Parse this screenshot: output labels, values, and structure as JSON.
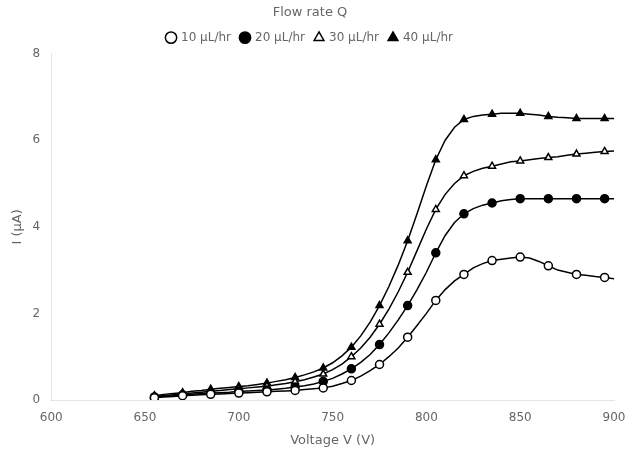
{
  "chart_data": {
    "type": "line",
    "xlabel": "Voltage V (V)",
    "ylabel": "I (μA)",
    "legend_title": "Flow rate Q",
    "xlim": [
      600,
      900
    ],
    "ylim": [
      0,
      8
    ],
    "xticks": [
      600,
      650,
      700,
      750,
      800,
      850,
      900
    ],
    "yticks": [
      0,
      2,
      4,
      6,
      8
    ],
    "grid": false,
    "legend": "top",
    "x": [
      655,
      660,
      665,
      670,
      675,
      680,
      685,
      690,
      695,
      700,
      705,
      710,
      715,
      720,
      725,
      730,
      735,
      740,
      745,
      750,
      755,
      760,
      765,
      770,
      775,
      780,
      785,
      790,
      795,
      800,
      805,
      810,
      815,
      820,
      825,
      830,
      835,
      840,
      845,
      850,
      855,
      860,
      865,
      870,
      875,
      880,
      885,
      890,
      895,
      900
    ],
    "series": [
      {
        "name": "10 μL/hr",
        "color": "#000000",
        "marker": "open-circle",
        "values": [
          0.05,
          0.07,
          0.08,
          0.1,
          0.11,
          0.12,
          0.13,
          0.14,
          0.15,
          0.16,
          0.17,
          0.18,
          0.19,
          0.2,
          0.21,
          0.22,
          0.24,
          0.26,
          0.28,
          0.32,
          0.38,
          0.45,
          0.55,
          0.68,
          0.82,
          1.0,
          1.2,
          1.45,
          1.72,
          2.0,
          2.3,
          2.55,
          2.75,
          2.9,
          3.05,
          3.15,
          3.22,
          3.25,
          3.28,
          3.3,
          3.28,
          3.2,
          3.1,
          3.0,
          2.95,
          2.9,
          2.88,
          2.85,
          2.83,
          2.8
        ]
      },
      {
        "name": "20 μL/hr",
        "color": "#000000",
        "marker": "circle",
        "values": [
          0.07,
          0.09,
          0.1,
          0.12,
          0.13,
          0.15,
          0.16,
          0.17,
          0.18,
          0.2,
          0.21,
          0.22,
          0.23,
          0.25,
          0.27,
          0.3,
          0.33,
          0.37,
          0.43,
          0.5,
          0.6,
          0.72,
          0.87,
          1.05,
          1.28,
          1.55,
          1.85,
          2.18,
          2.55,
          2.95,
          3.4,
          3.8,
          4.1,
          4.3,
          4.42,
          4.5,
          4.55,
          4.6,
          4.63,
          4.65,
          4.65,
          4.65,
          4.65,
          4.65,
          4.65,
          4.65,
          4.65,
          4.65,
          4.65,
          4.65
        ]
      },
      {
        "name": "30 μL/hr",
        "color": "#000000",
        "marker": "open-triangle",
        "values": [
          0.08,
          0.1,
          0.12,
          0.14,
          0.16,
          0.18,
          0.2,
          0.22,
          0.24,
          0.26,
          0.28,
          0.3,
          0.32,
          0.35,
          0.38,
          0.42,
          0.47,
          0.53,
          0.6,
          0.7,
          0.83,
          1.0,
          1.2,
          1.45,
          1.75,
          2.1,
          2.5,
          2.95,
          3.45,
          3.95,
          4.4,
          4.75,
          5.0,
          5.18,
          5.28,
          5.35,
          5.4,
          5.45,
          5.5,
          5.52,
          5.55,
          5.58,
          5.6,
          5.62,
          5.65,
          5.68,
          5.7,
          5.72,
          5.74,
          5.75
        ]
      },
      {
        "name": "40 μL/hr",
        "color": "#000000",
        "marker": "triangle",
        "values": [
          0.1,
          0.13,
          0.15,
          0.17,
          0.2,
          0.22,
          0.25,
          0.27,
          0.29,
          0.31,
          0.33,
          0.36,
          0.39,
          0.43,
          0.47,
          0.52,
          0.58,
          0.65,
          0.74,
          0.86,
          1.02,
          1.22,
          1.48,
          1.8,
          2.18,
          2.62,
          3.12,
          3.68,
          4.3,
          4.95,
          5.55,
          6.0,
          6.3,
          6.48,
          6.55,
          6.58,
          6.6,
          6.62,
          6.62,
          6.62,
          6.6,
          6.58,
          6.55,
          6.53,
          6.52,
          6.5,
          6.5,
          6.5,
          6.5,
          6.5
        ]
      }
    ]
  }
}
